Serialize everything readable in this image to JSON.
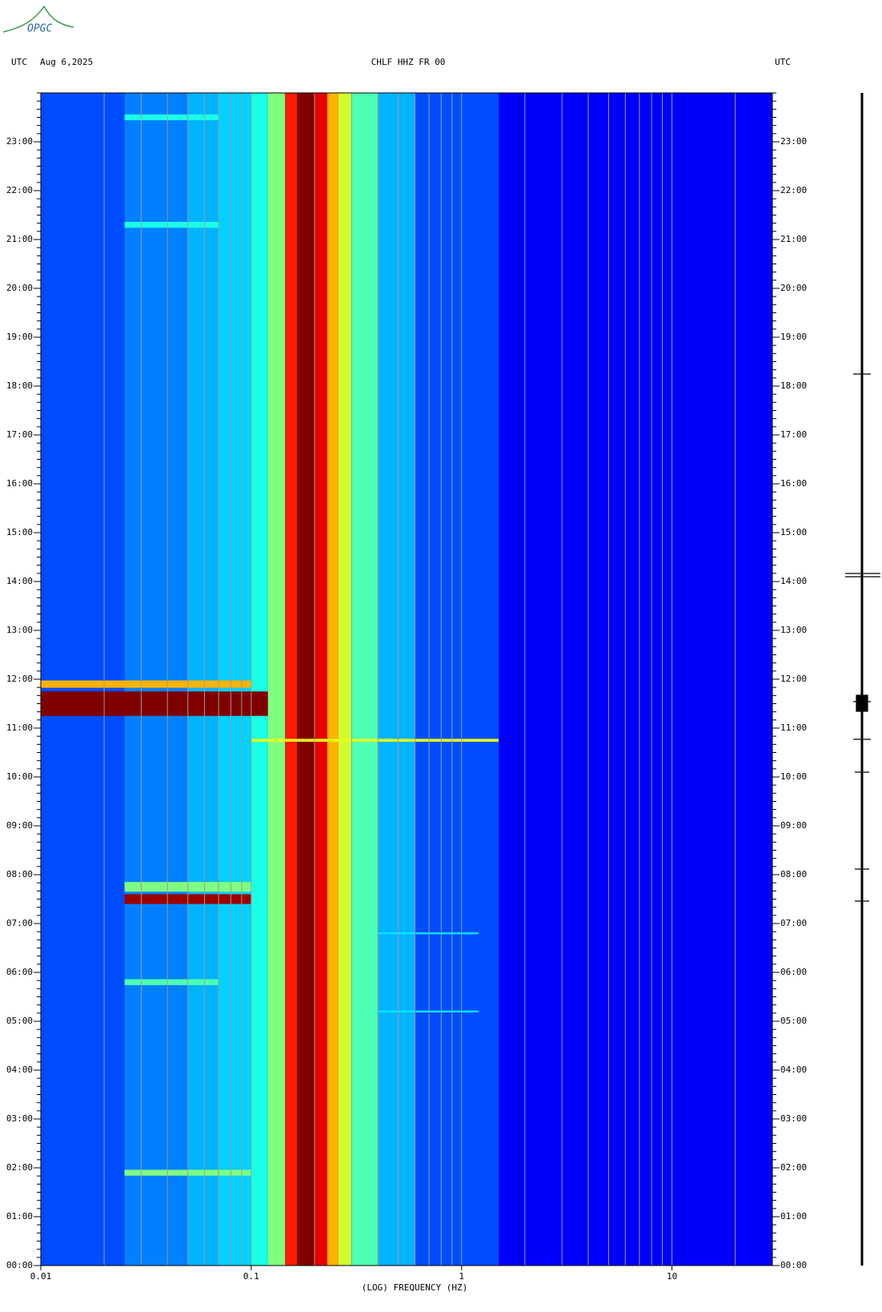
{
  "logo": "OPGC",
  "chart_data": {
    "type": "spectrogram",
    "header_left": "UTC",
    "date": "Aug 6,2025",
    "title": "CHLF HHZ FR 00",
    "header_right": "UTC",
    "x_label": "(LOG) FREQUENCY (HZ)",
    "x_log": true,
    "xlim": [
      0.01,
      30
    ],
    "xticks": [
      0.01,
      0.1,
      1,
      10
    ],
    "ylim": [
      0,
      24
    ],
    "yticks": [
      {
        "value": 0,
        "label": "00:00"
      },
      {
        "value": 1,
        "label": "01:00"
      },
      {
        "value": 2,
        "label": "02:00"
      },
      {
        "value": 3,
        "label": "03:00"
      },
      {
        "value": 4,
        "label": "04:00"
      },
      {
        "value": 5,
        "label": "05:00"
      },
      {
        "value": 6,
        "label": "06:00"
      },
      {
        "value": 7,
        "label": "07:00"
      },
      {
        "value": 8,
        "label": "08:00"
      },
      {
        "value": 9,
        "label": "09:00"
      },
      {
        "value": 10,
        "label": "10:00"
      },
      {
        "value": 11,
        "label": "11:00"
      },
      {
        "value": 12,
        "label": "12:00"
      },
      {
        "value": 13,
        "label": "13:00"
      },
      {
        "value": 14,
        "label": "14:00"
      },
      {
        "value": 15,
        "label": "15:00"
      },
      {
        "value": 16,
        "label": "16:00"
      },
      {
        "value": 17,
        "label": "17:00"
      },
      {
        "value": 18,
        "label": "18:00"
      },
      {
        "value": 19,
        "label": "19:00"
      },
      {
        "value": 20,
        "label": "20:00"
      },
      {
        "value": 21,
        "label": "21:00"
      },
      {
        "value": 22,
        "label": "22:00"
      },
      {
        "value": 23,
        "label": "23:00"
      }
    ],
    "spectrum": {
      "edges": [
        0.01,
        0.025,
        0.05,
        0.07,
        0.1,
        0.12,
        0.145,
        0.165,
        0.2,
        0.23,
        0.26,
        0.3,
        0.4,
        0.6,
        1.5,
        30
      ],
      "levels": [
        0.2,
        0.25,
        0.3,
        0.33,
        0.4,
        0.5,
        0.85,
        1.0,
        0.9,
        0.7,
        0.58,
        0.45,
        0.3,
        0.2,
        0.12
      ]
    },
    "events": [
      {
        "time": 11.5,
        "duration": 0.5,
        "fmin": 0.01,
        "fmax": 0.12,
        "level": 1.0
      },
      {
        "time": 11.9,
        "duration": 0.15,
        "fmin": 0.01,
        "fmax": 0.1,
        "level": 0.7
      },
      {
        "time": 7.5,
        "duration": 0.2,
        "fmin": 0.025,
        "fmax": 0.1,
        "level": 0.97
      },
      {
        "time": 7.75,
        "duration": 0.2,
        "fmin": 0.025,
        "fmax": 0.1,
        "level": 0.5
      },
      {
        "time": 10.75,
        "duration": 0.06,
        "fmin": 0.1,
        "fmax": 1.5,
        "level": 0.6
      },
      {
        "time": 1.9,
        "duration": 0.12,
        "fmin": 0.025,
        "fmax": 0.1,
        "level": 0.5
      },
      {
        "time": 5.8,
        "duration": 0.12,
        "fmin": 0.025,
        "fmax": 0.07,
        "level": 0.45
      },
      {
        "time": 21.3,
        "duration": 0.12,
        "fmin": 0.025,
        "fmax": 0.07,
        "level": 0.4
      },
      {
        "time": 23.5,
        "duration": 0.12,
        "fmin": 0.025,
        "fmax": 0.07,
        "level": 0.4
      },
      {
        "time": 5.2,
        "duration": 0.04,
        "fmin": 0.4,
        "fmax": 1.2,
        "level": 0.35
      },
      {
        "time": 6.8,
        "duration": 0.04,
        "fmin": 0.4,
        "fmax": 1.2,
        "level": 0.35
      }
    ]
  }
}
